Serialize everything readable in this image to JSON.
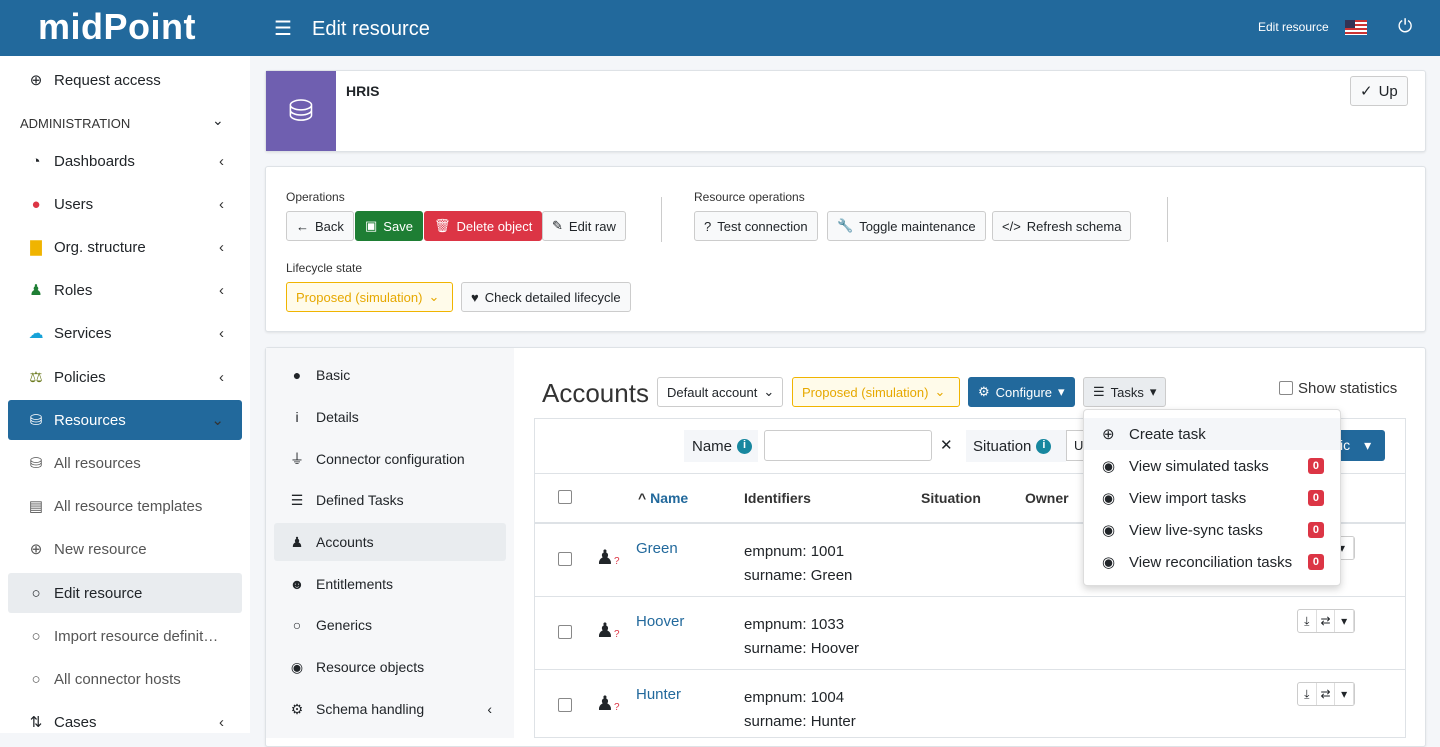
{
  "header": {
    "logo": "midPoint",
    "title": "Edit resource",
    "right_label": "Edit resource"
  },
  "sidebar": {
    "section": "ADMINISTRATION",
    "items": [
      {
        "label": "Request access",
        "icon": "plus-circle-icon"
      },
      {
        "label": "Dashboards",
        "icon": "dashboard-icon"
      },
      {
        "label": "Users",
        "icon": "user-icon"
      },
      {
        "label": "Org. structure",
        "icon": "building-icon"
      },
      {
        "label": "Roles",
        "icon": "role-icon"
      },
      {
        "label": "Services",
        "icon": "cloud-icon"
      },
      {
        "label": "Policies",
        "icon": "balance-icon"
      },
      {
        "label": "Resources",
        "icon": "database-icon"
      },
      {
        "label": "All resources",
        "icon": "database-icon"
      },
      {
        "label": "All resource templates",
        "icon": "file-icon"
      },
      {
        "label": "New resource",
        "icon": "plus-circle-icon"
      },
      {
        "label": "Edit resource",
        "icon": "circle-icon"
      },
      {
        "label": "Import resource definit…",
        "icon": "circle-icon"
      },
      {
        "label": "All connector hosts",
        "icon": "circle-icon"
      },
      {
        "label": "Cases",
        "icon": "cases-icon"
      }
    ]
  },
  "object": {
    "name": "HRIS",
    "up_label": "Up"
  },
  "operations": {
    "label": "Operations",
    "back": "Back",
    "save": "Save",
    "delete": "Delete object",
    "edit_raw": "Edit raw",
    "resource_label": "Resource operations",
    "test": "Test connection",
    "toggle": "Toggle maintenance",
    "refresh": "Refresh schema",
    "lifecycle_label": "Lifecycle state",
    "lifecycle_value": "Proposed (simulation)",
    "check": "Check detailed lifecycle"
  },
  "nav": [
    "Basic",
    "Details",
    "Connector configuration",
    "Defined Tasks",
    "Accounts",
    "Entitlements",
    "Generics",
    "Resource objects",
    "Schema handling"
  ],
  "accounts": {
    "title": "Accounts",
    "kind": "Default account",
    "lifecycle": "Proposed (simulation)",
    "configure": "Configure",
    "tasks": "Tasks",
    "show_statistics": "Show statistics",
    "search": {
      "name_label": "Name",
      "name_value": "",
      "situation_label": "Situation",
      "situation_value": "U",
      "basic": "ic"
    },
    "columns": [
      "Name",
      "Identifiers",
      "Situation",
      "Owner"
    ],
    "rows": [
      {
        "name": "Green",
        "id1": "empnum: 1001",
        "id2": "surname: Green"
      },
      {
        "name": "Hoover",
        "id1": "empnum: 1033",
        "id2": "surname: Hoover"
      },
      {
        "name": "Hunter",
        "id1": "empnum: 1004",
        "id2": "surname: Hunter"
      }
    ]
  },
  "tasks_menu": [
    {
      "label": "Create task",
      "icon": "plus-circle-icon"
    },
    {
      "label": "View simulated tasks",
      "icon": "eye-icon",
      "count": "0"
    },
    {
      "label": "View import tasks",
      "icon": "eye-icon",
      "count": "0"
    },
    {
      "label": "View live-sync tasks",
      "icon": "eye-icon",
      "count": "0"
    },
    {
      "label": "View reconciliation tasks",
      "icon": "eye-icon",
      "count": "0"
    }
  ],
  "colors": {
    "primary": "#22699c",
    "success": "#1e7e34",
    "danger": "#dc3545",
    "warning": "#f0b400",
    "purple": "#6f5fb0"
  }
}
